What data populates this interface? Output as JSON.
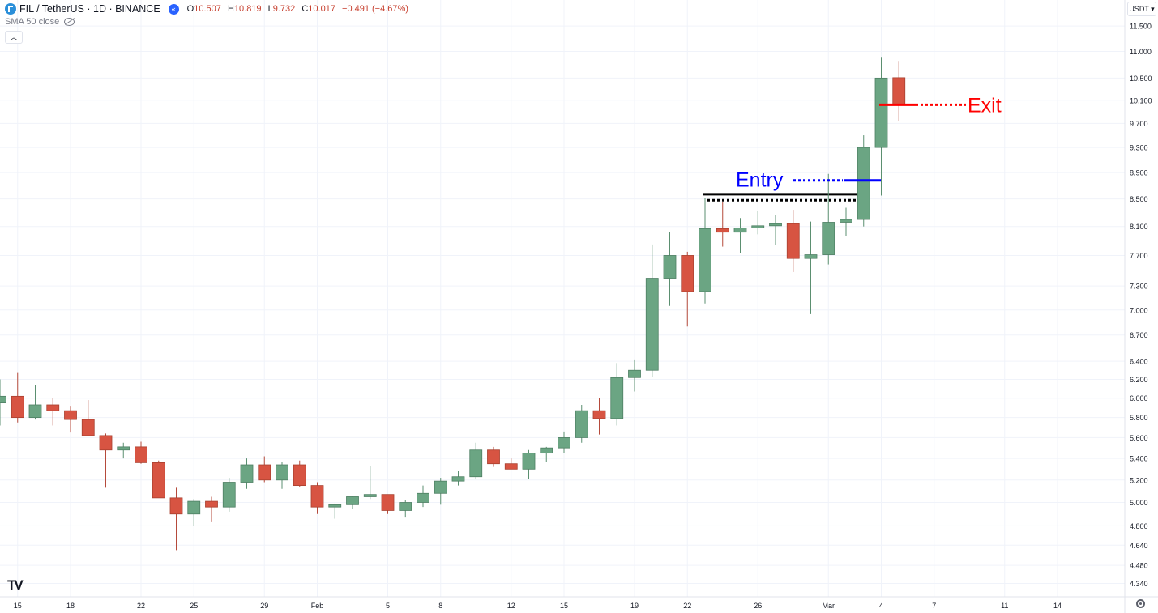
{
  "header": {
    "symbol": "FIL / TetherUS · 1D · BINANCE",
    "ohlc": {
      "o_label": "O",
      "o": "10.507",
      "h_label": "H",
      "h": "10.819",
      "l_label": "L",
      "l": "9.732",
      "c_label": "C",
      "c": "10.017",
      "change": "−0.491 (−4.67%)"
    },
    "sma_label": "SMA 50 close",
    "currency": "USDT",
    "collapse_icon": "chevron-up-icon",
    "symbol_icon": "coin-icon",
    "nav_icon": "rewind-icon",
    "visibility_icon": "eye-slash-icon",
    "settings_icon": "gear-icon",
    "logo_text": "TV"
  },
  "colors": {
    "up": "#6ba583",
    "down": "#d75442",
    "entry": "#0000ff",
    "exit": "#ff0000",
    "level": "#000000",
    "grid": "#f0f3fa"
  },
  "chart_data": {
    "type": "candlestick",
    "scale": "log",
    "ylim": [
      4.22,
      11.9
    ],
    "y_ticks": [
      "11.500",
      "11.000",
      "10.500",
      "10.100",
      "9.700",
      "9.300",
      "8.900",
      "8.500",
      "8.100",
      "7.700",
      "7.300",
      "7.000",
      "6.700",
      "6.400",
      "6.200",
      "6.000",
      "5.800",
      "5.600",
      "5.400",
      "5.200",
      "5.000",
      "4.800",
      "4.640",
      "4.480",
      "4.340"
    ],
    "x_ticks": [
      "15",
      "18",
      "22",
      "25",
      "29",
      "Feb",
      "5",
      "8",
      "12",
      "15",
      "19",
      "22",
      "26",
      "Mar",
      "4",
      "7",
      "11",
      "14"
    ],
    "x_tick_index": [
      1,
      4,
      8,
      11,
      15,
      18,
      22,
      25,
      29,
      32,
      36,
      39,
      43,
      47,
      50,
      53,
      57,
      60
    ],
    "candles": [
      {
        "o": 5.95,
        "h": 6.2,
        "l": 5.72,
        "c": 6.02
      },
      {
        "o": 6.02,
        "h": 6.27,
        "l": 5.75,
        "c": 5.8
      },
      {
        "o": 5.8,
        "h": 6.14,
        "l": 5.78,
        "c": 5.93
      },
      {
        "o": 5.93,
        "h": 6.0,
        "l": 5.72,
        "c": 5.87
      },
      {
        "o": 5.87,
        "h": 5.92,
        "l": 5.65,
        "c": 5.78
      },
      {
        "o": 5.78,
        "h": 5.98,
        "l": 5.62,
        "c": 5.62
      },
      {
        "o": 5.62,
        "h": 5.64,
        "l": 5.13,
        "c": 5.48
      },
      {
        "o": 5.48,
        "h": 5.55,
        "l": 5.4,
        "c": 5.51
      },
      {
        "o": 5.51,
        "h": 5.56,
        "l": 5.35,
        "c": 5.36
      },
      {
        "o": 5.36,
        "h": 5.38,
        "l": 5.04,
        "c": 5.04
      },
      {
        "o": 5.04,
        "h": 5.13,
        "l": 4.6,
        "c": 4.9
      },
      {
        "o": 4.9,
        "h": 5.03,
        "l": 4.8,
        "c": 5.01
      },
      {
        "o": 5.01,
        "h": 5.05,
        "l": 4.83,
        "c": 4.96
      },
      {
        "o": 4.96,
        "h": 5.22,
        "l": 4.92,
        "c": 5.18
      },
      {
        "o": 5.18,
        "h": 5.4,
        "l": 5.12,
        "c": 5.34
      },
      {
        "o": 5.34,
        "h": 5.42,
        "l": 5.18,
        "c": 5.2
      },
      {
        "o": 5.2,
        "h": 5.37,
        "l": 5.12,
        "c": 5.34
      },
      {
        "o": 5.34,
        "h": 5.38,
        "l": 5.14,
        "c": 5.15
      },
      {
        "o": 5.15,
        "h": 5.18,
        "l": 4.9,
        "c": 4.96
      },
      {
        "o": 4.96,
        "h": 4.99,
        "l": 4.86,
        "c": 4.98
      },
      {
        "o": 4.98,
        "h": 5.06,
        "l": 4.94,
        "c": 5.05
      },
      {
        "o": 5.05,
        "h": 5.33,
        "l": 5.03,
        "c": 5.07
      },
      {
        "o": 5.07,
        "h": 5.07,
        "l": 4.9,
        "c": 4.93
      },
      {
        "o": 4.93,
        "h": 5.02,
        "l": 4.87,
        "c": 5.0
      },
      {
        "o": 5.0,
        "h": 5.15,
        "l": 4.96,
        "c": 5.08
      },
      {
        "o": 5.08,
        "h": 5.22,
        "l": 4.98,
        "c": 5.19
      },
      {
        "o": 5.19,
        "h": 5.28,
        "l": 5.15,
        "c": 5.23
      },
      {
        "o": 5.23,
        "h": 5.55,
        "l": 5.21,
        "c": 5.48
      },
      {
        "o": 5.48,
        "h": 5.51,
        "l": 5.32,
        "c": 5.35
      },
      {
        "o": 5.35,
        "h": 5.4,
        "l": 5.3,
        "c": 5.3
      },
      {
        "o": 5.3,
        "h": 5.48,
        "l": 5.21,
        "c": 5.45
      },
      {
        "o": 5.45,
        "h": 5.51,
        "l": 5.37,
        "c": 5.5
      },
      {
        "o": 5.5,
        "h": 5.66,
        "l": 5.45,
        "c": 5.6
      },
      {
        "o": 5.6,
        "h": 5.93,
        "l": 5.55,
        "c": 5.87
      },
      {
        "o": 5.87,
        "h": 6.0,
        "l": 5.63,
        "c": 5.79
      },
      {
        "o": 5.79,
        "h": 6.38,
        "l": 5.72,
        "c": 6.22
      },
      {
        "o": 6.22,
        "h": 6.42,
        "l": 6.07,
        "c": 6.3
      },
      {
        "o": 6.3,
        "h": 7.85,
        "l": 6.23,
        "c": 7.4
      },
      {
        "o": 7.4,
        "h": 8.02,
        "l": 7.05,
        "c": 7.7
      },
      {
        "o": 7.7,
        "h": 7.75,
        "l": 6.8,
        "c": 7.23
      },
      {
        "o": 7.23,
        "h": 8.52,
        "l": 7.08,
        "c": 8.07
      },
      {
        "o": 8.07,
        "h": 8.45,
        "l": 7.82,
        "c": 8.02
      },
      {
        "o": 8.02,
        "h": 8.22,
        "l": 7.73,
        "c": 8.08
      },
      {
        "o": 8.08,
        "h": 8.32,
        "l": 7.99,
        "c": 8.11
      },
      {
        "o": 8.11,
        "h": 8.27,
        "l": 7.84,
        "c": 8.14
      },
      {
        "o": 8.14,
        "h": 8.34,
        "l": 7.48,
        "c": 7.66
      },
      {
        "o": 7.66,
        "h": 8.17,
        "l": 6.95,
        "c": 7.71
      },
      {
        "o": 7.71,
        "h": 8.88,
        "l": 7.58,
        "c": 8.16
      },
      {
        "o": 8.16,
        "h": 8.37,
        "l": 7.96,
        "c": 8.2
      },
      {
        "o": 8.2,
        "h": 9.5,
        "l": 8.1,
        "c": 9.3
      },
      {
        "o": 9.3,
        "h": 10.88,
        "l": 8.55,
        "c": 10.5
      },
      {
        "o": 10.507,
        "h": 10.819,
        "l": 9.732,
        "c": 10.017
      }
    ],
    "annotations": {
      "entry_label": "Entry",
      "exit_label": "Exit",
      "entry_price": 8.78,
      "exit_price": 10.02,
      "resistance_high": 8.57,
      "resistance_low": 8.48
    }
  }
}
